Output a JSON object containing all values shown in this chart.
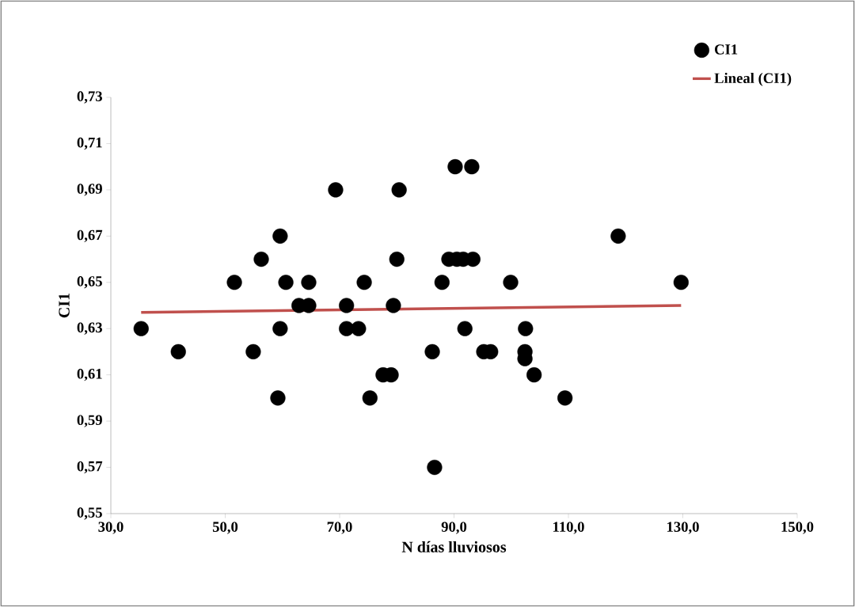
{
  "chart_data": {
    "type": "scatter",
    "xlabel": "N días lluviosos",
    "ylabel": "CI1",
    "xlim": [
      30,
      150
    ],
    "ylim": [
      0.55,
      0.73
    ],
    "xticks": [
      {
        "value": 30,
        "label": "30,0"
      },
      {
        "value": 50,
        "label": "50,0"
      },
      {
        "value": 70,
        "label": "70,0"
      },
      {
        "value": 90,
        "label": "90,0"
      },
      {
        "value": 110,
        "label": "110,0"
      },
      {
        "value": 130,
        "label": "130,0"
      },
      {
        "value": 150,
        "label": "150,0"
      }
    ],
    "yticks": [
      {
        "value": 0.55,
        "label": "0,55"
      },
      {
        "value": 0.57,
        "label": "0,57"
      },
      {
        "value": 0.59,
        "label": "0,59"
      },
      {
        "value": 0.61,
        "label": "0,61"
      },
      {
        "value": 0.63,
        "label": "0,63"
      },
      {
        "value": 0.65,
        "label": "0,65"
      },
      {
        "value": 0.67,
        "label": "0,67"
      },
      {
        "value": 0.69,
        "label": "0,69"
      },
      {
        "value": 0.71,
        "label": "0,71"
      },
      {
        "value": 0.73,
        "label": "0,73"
      }
    ],
    "grid": false,
    "legend": "top right",
    "series": [
      {
        "name": "CI1",
        "color": "#000000",
        "marker": "circle",
        "x": [
          35.3,
          41.8,
          51.6,
          56.3,
          54.9,
          59.6,
          59.6,
          59.2,
          60.6,
          62.9,
          64.6,
          64.6,
          69.3,
          71.2,
          71.2,
          73.3,
          74.3,
          75.3,
          77.6,
          79.0,
          79.4,
          80.0,
          80.4,
          86.2,
          86.6,
          87.9,
          89.1,
          90.2,
          90.5,
          91.6,
          91.9,
          93.1,
          93.3,
          95.2,
          96.4,
          99.9,
          102.5,
          102.4,
          102.4,
          104.0,
          109.4,
          118.7,
          129.7
        ],
        "values": [
          0.63,
          0.62,
          0.65,
          0.66,
          0.62,
          0.67,
          0.63,
          0.6,
          0.65,
          0.64,
          0.65,
          0.64,
          0.69,
          0.64,
          0.63,
          0.63,
          0.65,
          0.6,
          0.61,
          0.61,
          0.64,
          0.66,
          0.69,
          0.62,
          0.57,
          0.65,
          0.66,
          0.7,
          0.66,
          0.66,
          0.63,
          0.7,
          0.66,
          0.62,
          0.62,
          0.65,
          0.63,
          0.62,
          0.617,
          0.61,
          0.6,
          0.67,
          0.65
        ]
      },
      {
        "name": "Lineal (CI1)",
        "type": "line",
        "color": "#c0504d",
        "line_style": "solid",
        "marker": "none",
        "x": [
          35.3,
          129.7
        ],
        "values": [
          0.637,
          0.64
        ]
      }
    ]
  }
}
